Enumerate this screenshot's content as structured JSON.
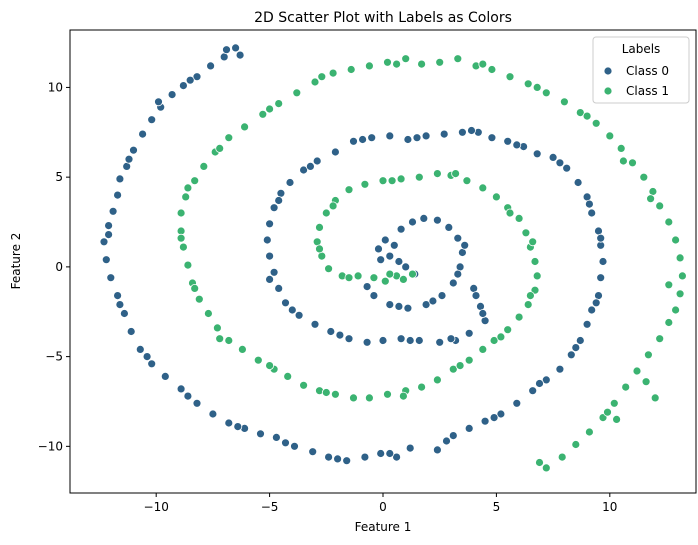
{
  "chart_data": {
    "type": "scatter",
    "title": "2D Scatter Plot with Labels as Colors",
    "xlabel": "Feature 1",
    "ylabel": "Feature 2",
    "xlim": [
      -13.8,
      13.8
    ],
    "ylim": [
      -12.6,
      13.2
    ],
    "xticks": [
      -10,
      -5,
      0,
      5,
      10
    ],
    "yticks": [
      -10,
      -5,
      0,
      5,
      10
    ],
    "xtick_labels": [
      "−10",
      "−5",
      "0",
      "5",
      "10"
    ],
    "ytick_labels": [
      "−10",
      "−5",
      "0",
      "5",
      "10"
    ],
    "grid": false,
    "legend": {
      "title": "Labels",
      "placement": "top-right"
    },
    "series": [
      {
        "name": "Class 0",
        "color": "#2f6188",
        "points": [
          [
            0.3,
            0.6
          ],
          [
            0.5,
            1.2
          ],
          [
            0.1,
            1.5
          ],
          [
            -0.2,
            1.0
          ],
          [
            -0.1,
            0.4
          ],
          [
            0.8,
            2.1
          ],
          [
            1.3,
            2.5
          ],
          [
            1.8,
            2.7
          ],
          [
            2.4,
            2.6
          ],
          [
            2.9,
            2.2
          ],
          [
            3.3,
            1.6
          ],
          [
            3.5,
            0.8
          ],
          [
            3.4,
            0.0
          ],
          [
            3.1,
            -0.9
          ],
          [
            2.6,
            -1.6
          ],
          [
            1.9,
            -2.1
          ],
          [
            1.1,
            -2.3
          ],
          [
            0.3,
            -2.1
          ],
          [
            -0.4,
            -1.6
          ],
          [
            -0.7,
            -1.1
          ],
          [
            1.4,
            -0.4
          ],
          [
            1.0,
            0.0
          ],
          [
            0.7,
            0.3
          ],
          [
            3.6,
            1.2
          ],
          [
            3.3,
            -0.4
          ],
          [
            2.2,
            -1.9
          ],
          [
            0.7,
            -2.2
          ],
          [
            4.0,
            -1.2
          ],
          [
            4.3,
            -2.2
          ],
          [
            4.5,
            -3.0
          ],
          [
            3.8,
            -3.7
          ],
          [
            3.2,
            -4.1
          ],
          [
            2.5,
            -4.2
          ],
          [
            1.6,
            -4.1
          ],
          [
            0.8,
            -4.0
          ],
          [
            0.0,
            -4.1
          ],
          [
            -0.7,
            -4.2
          ],
          [
            -1.5,
            -4.0
          ],
          [
            -2.3,
            -3.6
          ],
          [
            -3.0,
            -3.2
          ],
          [
            -3.7,
            -2.7
          ],
          [
            -4.3,
            -2.0
          ],
          [
            -4.6,
            -1.2
          ],
          [
            -4.8,
            -0.3
          ],
          [
            -5.0,
            0.6
          ],
          [
            -5.1,
            1.5
          ],
          [
            -5.0,
            2.4
          ],
          [
            -4.8,
            3.3
          ],
          [
            -4.5,
            4.1
          ],
          [
            -4.1,
            4.7
          ],
          [
            -3.5,
            5.4
          ],
          [
            -2.9,
            5.9
          ],
          [
            -2.1,
            6.4
          ],
          [
            -1.3,
            7.0
          ],
          [
            -0.5,
            7.2
          ],
          [
            0.3,
            7.3
          ],
          [
            1.1,
            7.1
          ],
          [
            1.9,
            7.3
          ],
          [
            2.7,
            7.4
          ],
          [
            3.5,
            7.5
          ],
          [
            4.2,
            7.5
          ],
          [
            4.8,
            7.2
          ],
          [
            5.5,
            7.0
          ],
          [
            6.2,
            6.7
          ],
          [
            6.8,
            6.3
          ],
          [
            7.5,
            6.1
          ],
          [
            8.1,
            5.5
          ],
          [
            8.6,
            4.7
          ],
          [
            9.0,
            3.9
          ],
          [
            9.2,
            3.0
          ],
          [
            9.5,
            2.0
          ],
          [
            9.6,
            1.2
          ],
          [
            9.7,
            0.3
          ],
          [
            9.6,
            -0.6
          ],
          [
            9.5,
            -1.6
          ],
          [
            9.2,
            -2.4
          ],
          [
            9.0,
            -3.2
          ],
          [
            8.7,
            -4.1
          ],
          [
            8.3,
            -4.9
          ],
          [
            7.8,
            -5.7
          ],
          [
            7.2,
            -6.3
          ],
          [
            6.6,
            -6.9
          ],
          [
            5.9,
            -7.6
          ],
          [
            5.2,
            -8.2
          ],
          [
            4.5,
            -8.6
          ],
          [
            3.8,
            -9.0
          ],
          [
            3.1,
            -9.4
          ],
          [
            2.4,
            -10.2
          ],
          [
            1.2,
            -10.1
          ],
          [
            0.6,
            -10.6
          ],
          [
            -0.1,
            -10.4
          ],
          [
            -0.8,
            -10.6
          ],
          [
            -1.6,
            -10.8
          ],
          [
            -2.4,
            -10.6
          ],
          [
            -3.1,
            -10.3
          ],
          [
            -3.9,
            -10.0
          ],
          [
            -4.7,
            -9.5
          ],
          [
            -5.4,
            -9.3
          ],
          [
            -6.1,
            -9.0
          ],
          [
            -6.8,
            -8.7
          ],
          [
            -7.5,
            -8.2
          ],
          [
            -8.2,
            -7.6
          ],
          [
            -8.9,
            -6.8
          ],
          [
            -9.6,
            -6.1
          ],
          [
            -10.2,
            -5.4
          ],
          [
            -10.7,
            -4.6
          ],
          [
            -11.1,
            -3.6
          ],
          [
            -11.4,
            -2.6
          ],
          [
            -11.7,
            -1.6
          ],
          [
            -12.0,
            -0.6
          ],
          [
            -12.2,
            0.4
          ],
          [
            -12.3,
            1.4
          ],
          [
            -12.1,
            2.3
          ],
          [
            -11.9,
            3.1
          ],
          [
            -11.7,
            4.0
          ],
          [
            -11.6,
            4.9
          ],
          [
            -11.3,
            5.6
          ],
          [
            -11.0,
            6.5
          ],
          [
            -10.6,
            7.4
          ],
          [
            -10.2,
            8.2
          ],
          [
            -9.8,
            8.9
          ],
          [
            -9.3,
            9.6
          ],
          [
            -8.8,
            10.1
          ],
          [
            -8.2,
            10.6
          ],
          [
            -7.6,
            11.2
          ],
          [
            -7.0,
            11.7
          ],
          [
            -6.5,
            12.2
          ],
          [
            -6.3,
            11.8
          ],
          [
            -6.9,
            12.1
          ],
          [
            -8.5,
            10.4
          ],
          [
            -9.9,
            9.2
          ],
          [
            -11.2,
            6.0
          ],
          [
            -12.1,
            1.8
          ],
          [
            -11.6,
            -2.1
          ],
          [
            -10.4,
            -5.0
          ],
          [
            -8.6,
            -7.2
          ],
          [
            -6.4,
            -8.9
          ],
          [
            -4.3,
            -9.8
          ],
          [
            -2.0,
            -10.7
          ],
          [
            0.3,
            -10.4
          ],
          [
            2.8,
            -9.7
          ],
          [
            4.9,
            -8.4
          ],
          [
            6.9,
            -6.5
          ],
          [
            8.5,
            -4.5
          ],
          [
            9.4,
            -2.0
          ],
          [
            9.6,
            1.6
          ],
          [
            9.1,
            3.5
          ],
          [
            7.8,
            5.8
          ],
          [
            5.9,
            6.8
          ],
          [
            3.9,
            7.6
          ],
          [
            1.5,
            7.2
          ],
          [
            -0.9,
            7.1
          ],
          [
            -3.2,
            5.6
          ],
          [
            -4.6,
            3.7
          ],
          [
            -5.0,
            -0.7
          ],
          [
            -4.0,
            -2.4
          ],
          [
            -1.9,
            -3.8
          ],
          [
            1.2,
            -4.1
          ],
          [
            3.0,
            -4.0
          ],
          [
            4.4,
            -2.6
          ],
          [
            4.1,
            -1.6
          ]
        ]
      },
      {
        "name": "Class 1",
        "color": "#3bb371",
        "points": [
          [
            -0.4,
            -0.6
          ],
          [
            0.1,
            -0.8
          ],
          [
            0.6,
            -0.5
          ],
          [
            1.3,
            -0.4
          ],
          [
            0.3,
            -0.4
          ],
          [
            -1.1,
            -0.5
          ],
          [
            -1.8,
            -0.5
          ],
          [
            -2.4,
            -0.1
          ],
          [
            -2.7,
            0.6
          ],
          [
            -2.9,
            1.4
          ],
          [
            -2.8,
            2.2
          ],
          [
            -2.5,
            3.0
          ],
          [
            -2.1,
            3.7
          ],
          [
            -1.5,
            4.3
          ],
          [
            -0.8,
            4.6
          ],
          [
            0.0,
            4.8
          ],
          [
            0.8,
            4.9
          ],
          [
            1.6,
            5.0
          ],
          [
            2.4,
            5.2
          ],
          [
            3.0,
            5.1
          ],
          [
            3.7,
            4.8
          ],
          [
            4.4,
            4.4
          ],
          [
            5.0,
            3.9
          ],
          [
            5.5,
            3.3
          ],
          [
            6.0,
            2.7
          ],
          [
            6.3,
            1.9
          ],
          [
            6.5,
            1.1
          ],
          [
            6.7,
            0.3
          ],
          [
            6.8,
            -0.5
          ],
          [
            6.7,
            -1.3
          ],
          [
            6.4,
            -2.1
          ],
          [
            6.0,
            -2.8
          ],
          [
            5.5,
            -3.5
          ],
          [
            4.9,
            -4.1
          ],
          [
            4.4,
            -4.6
          ],
          [
            3.8,
            -5.2
          ],
          [
            3.1,
            -5.7
          ],
          [
            2.4,
            -6.3
          ],
          [
            1.7,
            -6.7
          ],
          [
            1.0,
            -6.9
          ],
          [
            0.2,
            -7.1
          ],
          [
            -0.6,
            -7.3
          ],
          [
            -1.3,
            -7.3
          ],
          [
            -2.1,
            -7.1
          ],
          [
            -2.8,
            -6.9
          ],
          [
            -3.5,
            -6.6
          ],
          [
            -4.2,
            -6.1
          ],
          [
            -4.8,
            -5.7
          ],
          [
            -5.5,
            -5.2
          ],
          [
            -6.2,
            -4.6
          ],
          [
            -6.8,
            -4.1
          ],
          [
            -7.3,
            -3.4
          ],
          [
            -7.7,
            -2.6
          ],
          [
            -8.1,
            -1.8
          ],
          [
            -8.4,
            -0.9
          ],
          [
            -8.6,
            0.1
          ],
          [
            -8.8,
            1.1
          ],
          [
            -8.9,
            2.0
          ],
          [
            -8.9,
            3.0
          ],
          [
            -8.7,
            3.9
          ],
          [
            -8.3,
            4.8
          ],
          [
            -7.9,
            5.6
          ],
          [
            -7.4,
            6.4
          ],
          [
            -6.8,
            7.2
          ],
          [
            -6.1,
            7.8
          ],
          [
            -5.3,
            8.5
          ],
          [
            -4.6,
            9.1
          ],
          [
            -3.8,
            9.7
          ],
          [
            -3.0,
            10.3
          ],
          [
            -2.2,
            10.8
          ],
          [
            -1.4,
            11.0
          ],
          [
            -0.6,
            11.2
          ],
          [
            0.2,
            11.4
          ],
          [
            1.0,
            11.6
          ],
          [
            1.7,
            11.3
          ],
          [
            2.5,
            11.4
          ],
          [
            3.3,
            11.6
          ],
          [
            4.1,
            11.2
          ],
          [
            4.8,
            11.0
          ],
          [
            5.6,
            10.6
          ],
          [
            6.4,
            10.2
          ],
          [
            7.2,
            9.7
          ],
          [
            8.0,
            9.2
          ],
          [
            8.7,
            8.6
          ],
          [
            9.4,
            8.0
          ],
          [
            10.0,
            7.3
          ],
          [
            10.5,
            6.6
          ],
          [
            11.0,
            5.8
          ],
          [
            11.5,
            5.0
          ],
          [
            11.9,
            4.2
          ],
          [
            12.2,
            3.4
          ],
          [
            12.6,
            2.5
          ],
          [
            12.9,
            1.5
          ],
          [
            13.1,
            0.5
          ],
          [
            13.2,
            -0.5
          ],
          [
            13.1,
            -1.5
          ],
          [
            12.9,
            -2.4
          ],
          [
            12.6,
            -3.1
          ],
          [
            12.2,
            -4.0
          ],
          [
            11.7,
            -4.9
          ],
          [
            11.2,
            -5.8
          ],
          [
            10.7,
            -6.7
          ],
          [
            10.2,
            -7.6
          ],
          [
            9.7,
            -8.4
          ],
          [
            9.1,
            -9.2
          ],
          [
            8.5,
            -9.9
          ],
          [
            7.9,
            -10.6
          ],
          [
            7.2,
            -11.2
          ],
          [
            6.9,
            -10.9
          ],
          [
            12.0,
            -7.3
          ],
          [
            11.6,
            -6.4
          ],
          [
            9.9,
            -8.1
          ],
          [
            10.3,
            -8.5
          ],
          [
            12.6,
            -1.0
          ],
          [
            11.8,
            3.8
          ],
          [
            10.6,
            5.9
          ],
          [
            9.0,
            8.4
          ],
          [
            6.8,
            10.0
          ],
          [
            4.4,
            11.3
          ],
          [
            0.6,
            11.3
          ],
          [
            -2.7,
            10.6
          ],
          [
            -5.0,
            8.8
          ],
          [
            -7.2,
            6.6
          ],
          [
            -8.6,
            4.4
          ],
          [
            -8.9,
            1.6
          ],
          [
            -8.3,
            -1.2
          ],
          [
            -7.2,
            -4.0
          ],
          [
            -5.0,
            -5.5
          ],
          [
            -2.5,
            -7.0
          ],
          [
            0.9,
            -7.2
          ],
          [
            3.4,
            -5.5
          ],
          [
            5.2,
            -3.9
          ],
          [
            6.5,
            -1.6
          ],
          [
            6.6,
            1.4
          ],
          [
            5.6,
            3.0
          ],
          [
            3.2,
            5.2
          ],
          [
            0.4,
            4.8
          ],
          [
            -2.2,
            3.4
          ],
          [
            -2.8,
            1.0
          ],
          [
            -1.5,
            -0.6
          ],
          [
            0.9,
            -0.7
          ]
        ]
      }
    ]
  }
}
